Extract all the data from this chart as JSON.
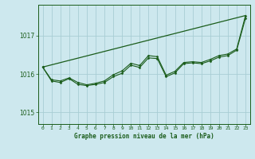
{
  "bg_color": "#cde8ee",
  "grid_color": "#a8cdd4",
  "line_color": "#1a5c1a",
  "marker_color": "#1a5c1a",
  "title": "Graphe pression niveau de la mer (hPa)",
  "title_color": "#1a5c1a",
  "xlim": [
    -0.5,
    23.5
  ],
  "ylim": [
    1014.7,
    1017.8
  ],
  "yticks": [
    1015,
    1016,
    1017
  ],
  "xticks": [
    0,
    1,
    2,
    3,
    4,
    5,
    6,
    7,
    8,
    9,
    10,
    11,
    12,
    13,
    14,
    15,
    16,
    17,
    18,
    19,
    20,
    21,
    22,
    23
  ],
  "series1_x": [
    0,
    23
  ],
  "series1_y": [
    1016.18,
    1017.52
  ],
  "series2_x": [
    0,
    1,
    2,
    3,
    4,
    5,
    6,
    7,
    8,
    9,
    10,
    11,
    12,
    13,
    14,
    15,
    16,
    17,
    18,
    19,
    20,
    21,
    22,
    23
  ],
  "series2_y": [
    1016.18,
    1015.85,
    1015.82,
    1015.9,
    1015.78,
    1015.72,
    1015.76,
    1015.82,
    1015.98,
    1016.08,
    1016.28,
    1016.22,
    1016.48,
    1016.45,
    1015.97,
    1016.07,
    1016.3,
    1016.32,
    1016.3,
    1016.38,
    1016.48,
    1016.52,
    1016.65,
    1017.52
  ],
  "series3_x": [
    0,
    1,
    2,
    3,
    4,
    5,
    6,
    7,
    8,
    9,
    10,
    11,
    12,
    13,
    14,
    15,
    16,
    17,
    18,
    19,
    20,
    21,
    22,
    23
  ],
  "series3_y": [
    1016.18,
    1015.82,
    1015.78,
    1015.88,
    1015.73,
    1015.7,
    1015.73,
    1015.78,
    1015.93,
    1016.02,
    1016.23,
    1016.17,
    1016.42,
    1016.4,
    1015.93,
    1016.03,
    1016.27,
    1016.29,
    1016.27,
    1016.34,
    1016.44,
    1016.48,
    1016.62,
    1017.45
  ]
}
